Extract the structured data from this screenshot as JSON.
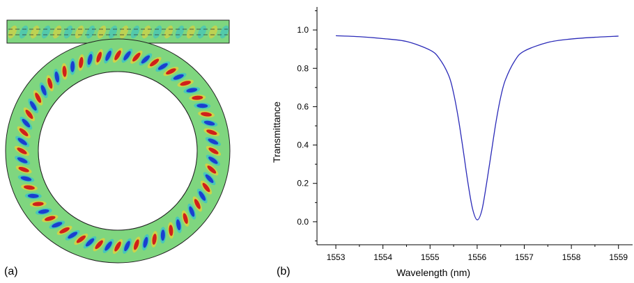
{
  "panels": {
    "a_label": "(a)",
    "b_label": "(b)"
  },
  "field_plot": {
    "description_colors": {
      "background": "#7fd67f",
      "positive": "#d0201a",
      "negative": "#1a3fd0",
      "mid_high": "#f0d030",
      "mid_low": "#30c0d0"
    }
  },
  "chart_data": {
    "type": "line",
    "title": "",
    "xlabel": "Wavelength (nm)",
    "ylabel": "Transmittance",
    "xlim": [
      1552.6,
      1559.3
    ],
    "ylim": [
      -0.12,
      1.12
    ],
    "xticks": [
      1553,
      1554,
      1555,
      1556,
      1557,
      1558,
      1559
    ],
    "yticks": [
      0.0,
      0.2,
      0.4,
      0.6,
      0.8,
      1.0
    ],
    "ytick_labels": [
      "0.0",
      "0.2",
      "0.4",
      "0.6",
      "0.8",
      "1.0"
    ],
    "grid": false,
    "line_color": "#2a2ab8",
    "series": [
      {
        "x": [
          1553.0,
          1553.5,
          1554.0,
          1554.5,
          1555.0,
          1555.2,
          1555.4,
          1555.5,
          1555.6,
          1555.7,
          1555.8,
          1555.9,
          1556.0,
          1556.1,
          1556.2,
          1556.3,
          1556.4,
          1556.5,
          1556.6,
          1556.8,
          1557.0,
          1557.5,
          1558.0,
          1558.5,
          1559.0
        ],
        "y": [
          0.97,
          0.965,
          0.955,
          0.94,
          0.895,
          0.85,
          0.76,
          0.67,
          0.54,
          0.38,
          0.21,
          0.07,
          0.01,
          0.06,
          0.2,
          0.36,
          0.52,
          0.65,
          0.74,
          0.84,
          0.89,
          0.935,
          0.953,
          0.962,
          0.968
        ]
      }
    ]
  }
}
